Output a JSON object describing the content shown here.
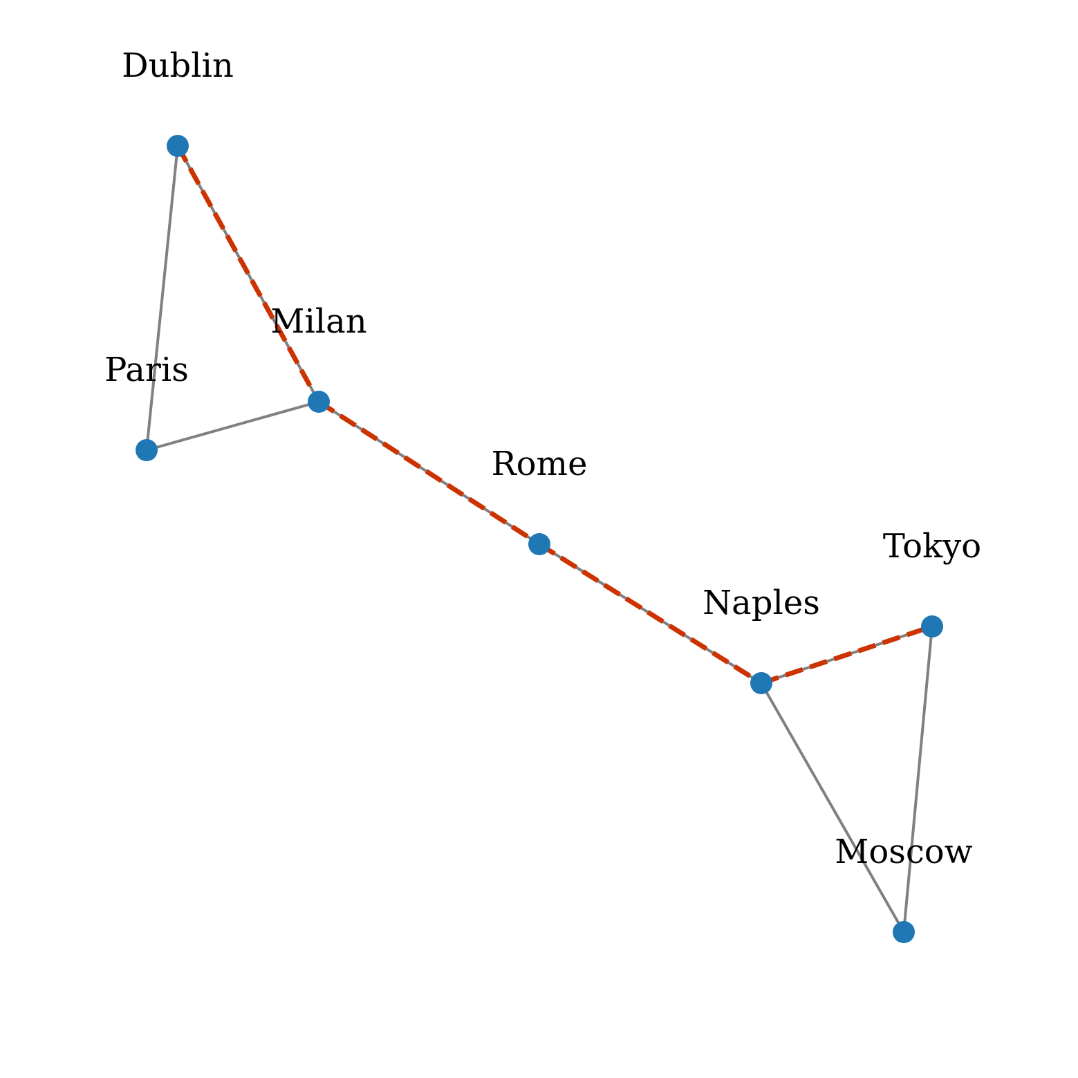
{
  "diagram": {
    "type": "graph",
    "nodes": [
      {
        "id": "Dublin",
        "label": "Dublin"
      },
      {
        "id": "Milan",
        "label": "Milan"
      },
      {
        "id": "Paris",
        "label": "Paris"
      },
      {
        "id": "Rome",
        "label": "Rome"
      },
      {
        "id": "Naples",
        "label": "Naples"
      },
      {
        "id": "Tokyo",
        "label": "Tokyo"
      },
      {
        "id": "Moscow",
        "label": "Moscow"
      }
    ],
    "edges": [
      {
        "source": "Dublin",
        "target": "Paris"
      },
      {
        "source": "Dublin",
        "target": "Milan"
      },
      {
        "source": "Paris",
        "target": "Milan"
      },
      {
        "source": "Milan",
        "target": "Rome"
      },
      {
        "source": "Rome",
        "target": "Naples"
      },
      {
        "source": "Naples",
        "target": "Tokyo"
      },
      {
        "source": "Naples",
        "target": "Moscow"
      },
      {
        "source": "Tokyo",
        "target": "Moscow"
      }
    ],
    "highlighted_path": [
      "Dublin",
      "Milan",
      "Rome",
      "Naples",
      "Tokyo"
    ],
    "colors": {
      "node": "#1f77b4",
      "edge": "#808080",
      "highlight": "#cc3300",
      "label": "#000000"
    }
  }
}
